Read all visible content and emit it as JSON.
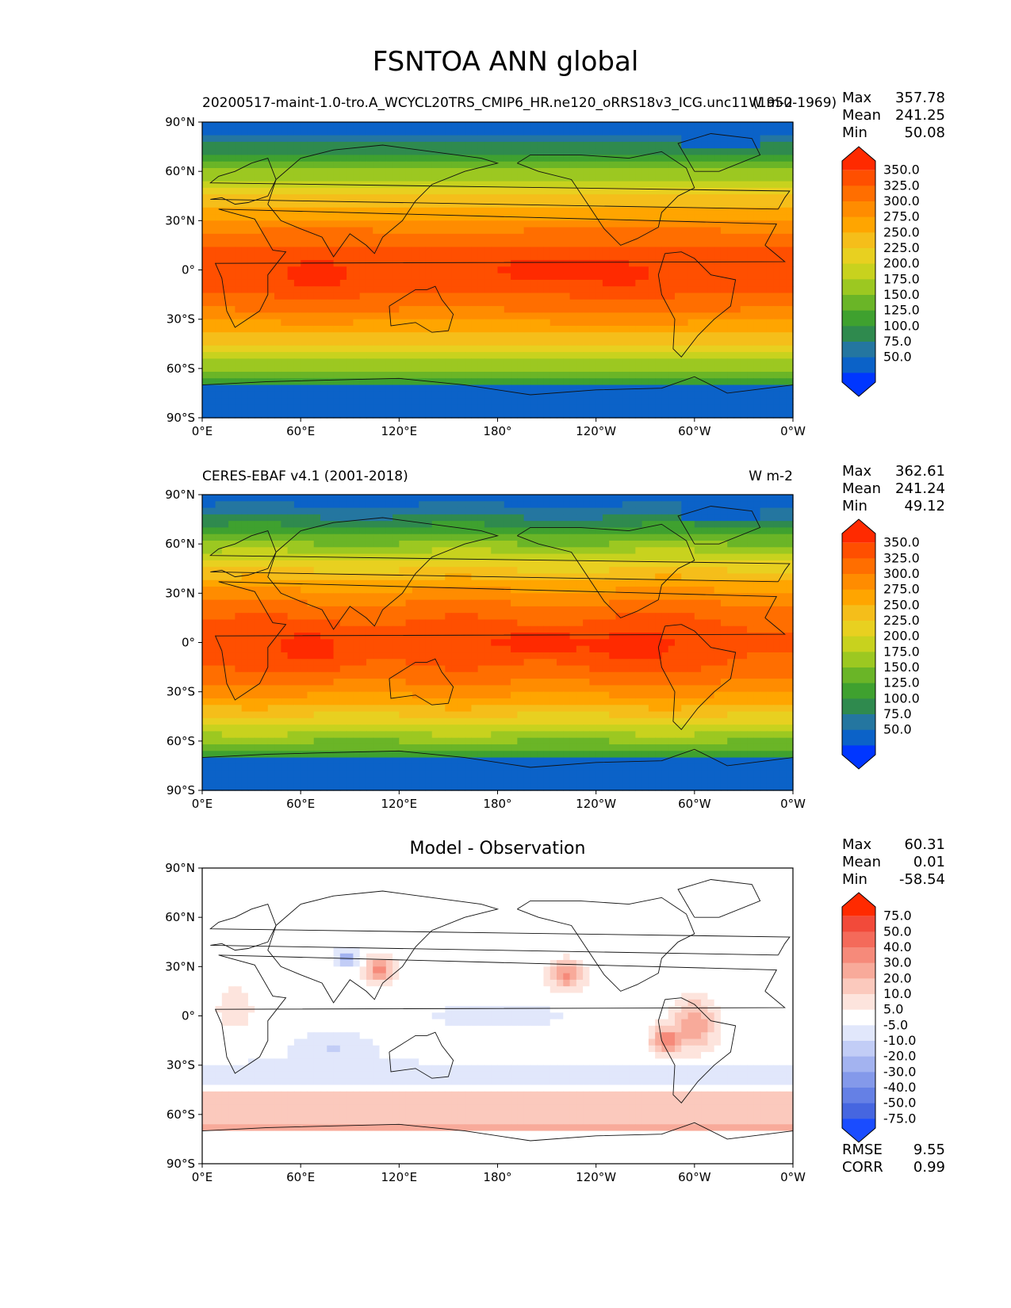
{
  "title": "FSNTOA ANN global",
  "panels": [
    {
      "title_left": "20200517-maint-1.0-tro.A_WCYCL20TRS_CMIP6_HR.ne120_oRRS18v3_ICG.unc11 (1950-1969)",
      "title_right": "W m-2",
      "stats": [
        {
          "k": "Max",
          "v": "357.78"
        },
        {
          "k": "Mean",
          "v": "241.25"
        },
        {
          "k": "Min",
          "v": "50.08"
        }
      ]
    },
    {
      "title_left": "CERES-EBAF v4.1 (2001-2018)",
      "title_right": "W m-2",
      "stats": [
        {
          "k": "Max",
          "v": "362.61"
        },
        {
          "k": "Mean",
          "v": "241.24"
        },
        {
          "k": "Min",
          "v": "49.12"
        }
      ]
    },
    {
      "title_center": "Model - Observation",
      "stats": [
        {
          "k": "Max",
          "v": "60.31"
        },
        {
          "k": "Mean",
          "v": "0.01"
        },
        {
          "k": "Min",
          "v": "-58.54"
        }
      ],
      "bottom_stats": [
        {
          "k": "RMSE",
          "v": "9.55"
        },
        {
          "k": "CORR",
          "v": "0.99"
        }
      ]
    }
  ],
  "chart_data": [
    {
      "type": "heatmap",
      "map_projection": "cylindrical",
      "title": "20200517-maint-1.0-tro.A_WCYCL20TRS_CMIP6_HR.ne120_oRRS18v3_ICG.unc11 (1950-1969)",
      "units": "W m-2",
      "xlim": [
        0,
        360
      ],
      "ylim": [
        -90,
        90
      ],
      "x_ticks": [
        "0°E",
        "60°E",
        "120°E",
        "180°",
        "120°W",
        "60°W",
        "0°W"
      ],
      "y_ticks": [
        "90°N",
        "60°N",
        "30°N",
        "0°",
        "30°S",
        "60°S",
        "90°S"
      ],
      "colorbar_levels": [
        "350.0",
        "325.0",
        "300.0",
        "275.0",
        "250.0",
        "225.0",
        "200.0",
        "175.0",
        "150.0",
        "125.0",
        "100.0",
        "75.0",
        "50.0"
      ],
      "colorbar_colors": [
        "#ff2a00",
        "#ff4f00",
        "#ff6e00",
        "#ff8c00",
        "#ffa500",
        "#f5be1a",
        "#e8d020",
        "#c8d21e",
        "#9cc821",
        "#6ab527",
        "#3fa12f",
        "#2f8a4e",
        "#2476a0",
        "#0b62c8",
        "#0036ff"
      ],
      "stats": {
        "max": 357.78,
        "mean": 241.25,
        "min": 50.08
      }
    },
    {
      "type": "heatmap",
      "map_projection": "cylindrical",
      "title": "CERES-EBAF v4.1 (2001-2018)",
      "units": "W m-2",
      "xlim": [
        0,
        360
      ],
      "ylim": [
        -90,
        90
      ],
      "x_ticks": [
        "0°E",
        "60°E",
        "120°E",
        "180°",
        "120°W",
        "60°W",
        "0°W"
      ],
      "y_ticks": [
        "90°N",
        "60°N",
        "30°N",
        "0°",
        "30°S",
        "60°S",
        "90°S"
      ],
      "colorbar_levels": [
        "350.0",
        "325.0",
        "300.0",
        "275.0",
        "250.0",
        "225.0",
        "200.0",
        "175.0",
        "150.0",
        "125.0",
        "100.0",
        "75.0",
        "50.0"
      ],
      "colorbar_colors": [
        "#ff2a00",
        "#ff4f00",
        "#ff6e00",
        "#ff8c00",
        "#ffa500",
        "#f5be1a",
        "#e8d020",
        "#c8d21e",
        "#9cc821",
        "#6ab527",
        "#3fa12f",
        "#2f8a4e",
        "#2476a0",
        "#0b62c8",
        "#0036ff"
      ],
      "stats": {
        "max": 362.61,
        "mean": 241.24,
        "min": 49.12
      }
    },
    {
      "type": "heatmap",
      "map_projection": "cylindrical",
      "title": "Model - Observation",
      "xlim": [
        0,
        360
      ],
      "ylim": [
        -90,
        90
      ],
      "x_ticks": [
        "0°E",
        "60°E",
        "120°E",
        "180°",
        "120°W",
        "60°W",
        "0°W"
      ],
      "y_ticks": [
        "90°N",
        "60°N",
        "30°N",
        "0°",
        "30°S",
        "60°S",
        "90°S"
      ],
      "colorbar_levels": [
        "75.0",
        "50.0",
        "40.0",
        "30.0",
        "20.0",
        "10.0",
        "5.0",
        "-5.0",
        "-10.0",
        "-20.0",
        "-30.0",
        "-40.0",
        "-50.0",
        "-75.0"
      ],
      "colorbar_colors": [
        "#ff2a00",
        "#f24a3a",
        "#f46a5a",
        "#f68a7a",
        "#f8aa9a",
        "#fbc9bd",
        "#fde4dd",
        "#ffffff",
        "#e1e7fb",
        "#c2cdf6",
        "#a3b3f0",
        "#8499ea",
        "#6580e5",
        "#4666e0",
        "#1a4cff"
      ],
      "stats": {
        "max": 60.31,
        "mean": 0.01,
        "min": -58.54,
        "rmse": 9.55,
        "corr": 0.99
      }
    }
  ]
}
